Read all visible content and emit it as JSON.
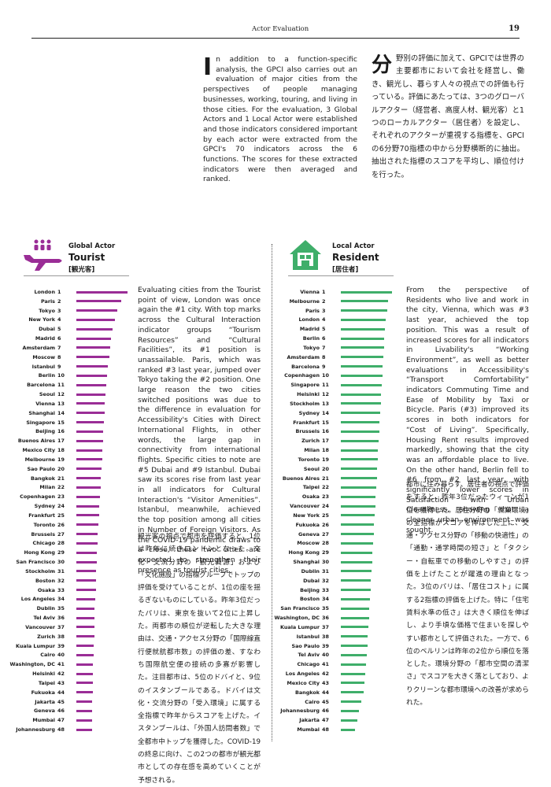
{
  "header": {
    "section": "Actor Evaluation",
    "page": 19
  },
  "intro": {
    "en": {
      "dropcap": "I",
      "text": "n addition to a function-specific analysis, the GPCI also carries out an evaluation of major cities from the perspectives of people managing businesses, working, touring, and living in those cities. For the evaluation, 3 Global Actors and 1 Local Actor were established and those indicators considered important by each actor were extracted from the GPCI's 70 indicators across the 6 functions. The scores for these extracted indicators were then averaged and ranked."
    },
    "ja": {
      "dropcap": "分",
      "text": "野別の評価に加えて、GPCIでは世界の主要都市において会社を経営し、働き、観光し、暮らす人々の視点での評価も行っている。評価にあたっては、3つのグローバルアクター（経営者、高度人材、観光客）と1つのローカルアクター（居住者）を設定し、それぞれのアクターが重視する指標を、GPCIの6分野70指標の中から分野横断的に抽出。抽出された指標のスコアを平均し、順位付けを行った。"
    }
  },
  "actors": [
    {
      "kind": "Global Actor",
      "name": "Tourist",
      "name_ja": "[観光客]",
      "color": "#9a2d96",
      "cities": [
        "London",
        "Paris",
        "Tokyo",
        "New York",
        "Dubai",
        "Madrid",
        "Amsterdam",
        "Moscow",
        "Istanbul",
        "Berlin",
        "Barcelona",
        "Seoul",
        "Vienna",
        "Shanghai",
        "Singapore",
        "Beijing",
        "Buenos Aires",
        "Mexico City",
        "Melbourne",
        "Sao Paulo",
        "Bangkok",
        "Milan",
        "Copenhagen",
        "Sydney",
        "Frankfurt",
        "Toronto",
        "Brussels",
        "Chicago",
        "Hong Kong",
        "San Francisco",
        "Stockholm",
        "Boston",
        "Osaka",
        "Los Angeles",
        "Dublin",
        "Tel Aviv",
        "Vancouver",
        "Zurich",
        "Kuala Lumpur",
        "Cairo",
        "Washington, DC",
        "Helsinki",
        "Taipei",
        "Fukuoka",
        "Jakarta",
        "Geneva",
        "Mumbai",
        "Johannesburg"
      ],
      "ranks": [
        1,
        2,
        3,
        4,
        5,
        6,
        7,
        8,
        9,
        10,
        11,
        12,
        13,
        14,
        15,
        16,
        17,
        18,
        19,
        20,
        21,
        22,
        23,
        24,
        25,
        26,
        27,
        28,
        29,
        30,
        31,
        32,
        33,
        34,
        35,
        36,
        37,
        38,
        39,
        40,
        41,
        42,
        43,
        44,
        45,
        46,
        47,
        48
      ],
      "scores": [
        100,
        88,
        80,
        76,
        70,
        68,
        66,
        64,
        62,
        60,
        58,
        57,
        56,
        55,
        54,
        53,
        52,
        51,
        50,
        49,
        48,
        47,
        46,
        45,
        44,
        43,
        42,
        41,
        40,
        40,
        39,
        38,
        38,
        37,
        36,
        36,
        35,
        35,
        34,
        34,
        33,
        33,
        32,
        32,
        31,
        31,
        30,
        30
      ],
      "text_en": "Evaluating cities from the Tourist point of view, London was once again the #1 city. With top marks across the Cultural Interaction indicator groups “Tourism Resources” and “Cultural Facilities”, its #1 position is unassailable. Paris, which was ranked #3 last year, jumped over Tokyo taking the #2 position. One large reason the two cities switched positions was due to the difference in evaluation for Accessibility's Cities with Direct International Flights, in other words, the large gap in connectivity from international flights. Specific cities to note are #5 Dubai and #9 Istanbul. Dubai saw its scores rise from last year in all indicators for Cultural Interaction's “Visitor Amenities”. Istanbul, meanwhile, achieved the top position among all cities in Number of Foreign Visitors. As the COVID-19 pandemic draws to a close, these two cities are expected to strengthen their presence as tourist cities.",
      "text_ja": "観光客の視点で都市を評価すると、1位は昨年に続きロンドンとなった。文化・交流分野の「観光資源」および「文化施設」の指標グループでトップの評価を受けていることが、1位の座を揺るぎないものにしている。昨年3位だったパリは、東京を抜いて2位に上昇した。両都市の順位が逆転した大きな理由は、交通・アクセス分野の「国際線直行便就航都市数」の評価の差、すなわち国際航空便の接続の多寡が影響した。注目都市は、5位のドバイと、9位のイスタンブールである。ドバイは文化・交流分野の「受入環境」に属する全指標で昨年からスコアを上げた。イスタンブールは、「外国人訪問者数」で全都市中トップを獲得した。COVID-19の終息に向け、この2つの都市が観光都市としての存在感を高めていくことが予想される。"
    },
    {
      "kind": "Local Actor",
      "name": "Resident",
      "name_ja": "[居住者]",
      "color": "#3fae6a",
      "cities": [
        "Vienna",
        "Melbourne",
        "Paris",
        "London",
        "Madrid",
        "Berlin",
        "Tokyo",
        "Amsterdam",
        "Barcelona",
        "Copenhagen",
        "Singapore",
        "Helsinki",
        "Stockholm",
        "Sydney",
        "Frankfurt",
        "Brussels",
        "Zurich",
        "Milan",
        "Toronto",
        "Seoul",
        "Buenos Aires",
        "Taipei",
        "Osaka",
        "Vancouver",
        "New York",
        "Fukuoka",
        "Geneva",
        "Moscow",
        "Hong Kong",
        "Shanghai",
        "Dublin",
        "Dubai",
        "Beijing",
        "Boston",
        "San Francisco",
        "Washington, DC",
        "Kuala Lumpur",
        "Istanbul",
        "Sao Paulo",
        "Tel Aviv",
        "Chicago",
        "Los Angeles",
        "Mexico City",
        "Bangkok",
        "Cairo",
        "Johannesburg",
        "Jakarta",
        "Mumbai"
      ],
      "ranks": [
        1,
        2,
        3,
        4,
        5,
        6,
        7,
        8,
        9,
        10,
        11,
        12,
        13,
        14,
        15,
        16,
        17,
        18,
        19,
        20,
        21,
        22,
        23,
        24,
        25,
        26,
        27,
        28,
        29,
        30,
        31,
        32,
        33,
        34,
        35,
        36,
        37,
        38,
        39,
        40,
        41,
        42,
        43,
        44,
        45,
        46,
        47,
        48
      ],
      "scores": [
        100,
        92,
        90,
        88,
        86,
        85,
        84,
        83,
        82,
        81,
        80,
        79,
        78,
        77,
        76,
        75,
        74,
        73,
        72,
        71,
        70,
        69,
        68,
        67,
        66,
        65,
        64,
        63,
        62,
        61,
        60,
        59,
        58,
        57,
        56,
        55,
        54,
        53,
        52,
        50,
        49,
        48,
        46,
        44,
        40,
        36,
        32,
        28
      ],
      "text_en": "From the perspective of Residents who live and work in the city, Vienna, which was #3 last year, achieved the top position. This was a result of increased scores for all indicators in Livability's “Working Environment”, as well as better evaluations in Accessibility's “Transport Comfortability” indicators Commuting Time and Ease of Mobility by Taxi or Bicycle. Paris (#3) improved its scores in both indicators for “Cost of Living”. Specifically, Housing Rent results improved markedly, showing that the city was an affordable place to live. On the other hand, Berlin fell to #6 from #2 last year, with significantly lower scores in Satisfaction with Urban Cleanliness, showing that a cleaner urban environment was sought.",
      "text_ja": "都市に住み暮らす、居住者の視点で評価をすると、昨年3位だったウィーンが1位を獲得した。居住分野の「就業環境」の全指標がスコアを伸ばした上に、交通・アクセス分野の「移動の快適性」の「通勤・通学時間の短さ」と「タクシー・自転車での移動のしやすさ」の評価を上げたことが躍進の理由となった。3位のパリは、「居住コスト」に属する2指標の評価を上げた。特に「住宅賃料水準の低さ」は大きく順位を伸ばし、より手頃な価格で住まいを探しやすい都市として評価された。一方で、6位のベルリンは昨年の2位から順位を落とした。環境分野の「都市空間の清潔さ」でスコアを大きく落としており、よりクリーンな都市環境への改善が求められた。"
    }
  ]
}
